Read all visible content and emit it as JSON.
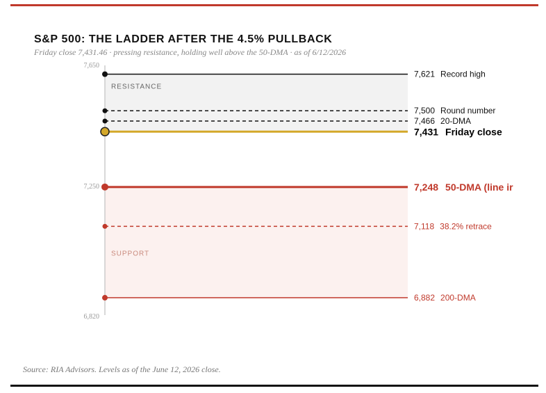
{
  "chart_data": {
    "type": "line",
    "title": "S&P 500: THE LADDER AFTER THE 4.5% PULLBACK",
    "subtitle": "Friday close 7,431.46 · pressing resistance, holding well above the 50-DMA · as of 6/12/2026",
    "ylim": [
      6820,
      7650
    ],
    "y_ticks": [
      "7,650",
      "7,250",
      "6,820"
    ],
    "y_tick_values": [
      7650,
      7250,
      6820
    ],
    "zones": [
      {
        "label": "RESISTANCE",
        "from": 7431,
        "to": 7621,
        "color": "#f2f2f2",
        "text_color": "#666666"
      },
      {
        "label": "SUPPORT",
        "from": 6882,
        "to": 7248,
        "color": "#fcf1ef",
        "text_color": "#c98a7d"
      }
    ],
    "levels": [
      {
        "value": 7621,
        "value_label": "7,621",
        "name": "Record high",
        "color": "#111111",
        "style": "solid",
        "emphasis": "normal"
      },
      {
        "value": 7500,
        "value_label": "7,500",
        "name": "Round number",
        "color": "#111111",
        "style": "dashed",
        "emphasis": "normal"
      },
      {
        "value": 7466,
        "value_label": "7,466",
        "name": "20-DMA",
        "color": "#111111",
        "style": "dashed",
        "emphasis": "normal"
      },
      {
        "value": 7431,
        "value_label": "7,431",
        "name": "Friday close",
        "color": "#d4a82a",
        "text_color": "#000000",
        "style": "solid",
        "emphasis": "close"
      },
      {
        "value": 7248,
        "value_label": "7,248",
        "name": "50-DMA (line ir",
        "color": "#c0392b",
        "style": "solid",
        "emphasis": "strong"
      },
      {
        "value": 7118,
        "value_label": "7,118",
        "name": "38.2% retrace",
        "color": "#c0392b",
        "style": "dashed",
        "emphasis": "normal"
      },
      {
        "value": 6882,
        "value_label": "6,882",
        "name": "200-DMA",
        "color": "#c0392b",
        "style": "solid",
        "emphasis": "normal"
      }
    ],
    "source": "Source: RIA Advisors. Levels as of the June 12, 2026 close."
  }
}
